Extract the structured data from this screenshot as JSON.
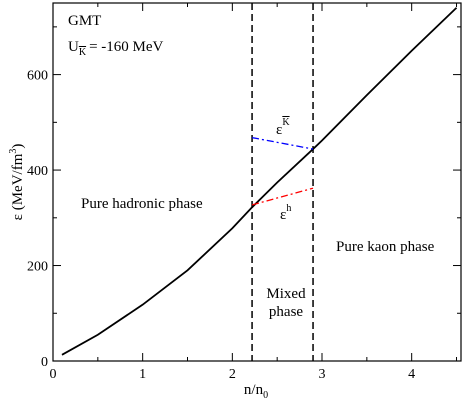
{
  "chart_data": {
    "type": "line",
    "title": "",
    "xlabel": "n/n",
    "xlabel_sub": "0",
    "ylabel": "ε (MeV/fm",
    "ylabel_sup": "3",
    "ylabel_close": ")",
    "xlim": [
      0,
      4.55
    ],
    "ylim": [
      0,
      750
    ],
    "x_ticks": [
      0,
      1,
      2,
      3,
      4
    ],
    "x_tick_labels": [
      "0",
      "1",
      "2",
      "3",
      "4"
    ],
    "y_ticks": [
      0,
      200,
      400,
      600
    ],
    "y_tick_labels": [
      "0",
      "200",
      "400",
      "600"
    ],
    "x_minor_step": 0.5,
    "y_minor_step": 100,
    "grid": false,
    "series": [
      {
        "color": "#000000",
        "style": "solid",
        "x": [
          0.1,
          0.5,
          1.0,
          1.5,
          2.0,
          2.22,
          2.5,
          2.9,
          3.0,
          3.5,
          4.0,
          4.5
        ],
        "y": [
          13,
          55,
          118,
          190,
          278,
          322,
          374,
          444,
          462,
          557,
          650,
          740
        ]
      },
      {
        "color": "#0000ff",
        "style": "dash-dot",
        "x": [
          2.22,
          2.9
        ],
        "y": [
          468,
          444
        ]
      },
      {
        "color": "#ff0000",
        "style": "dash-dot",
        "x": [
          2.22,
          2.9
        ],
        "y": [
          327,
          362
        ]
      }
    ],
    "vlines": [
      {
        "x": 2.22,
        "style": "dashed",
        "color": "#000000"
      },
      {
        "x": 2.9,
        "style": "dashed",
        "color": "#000000"
      }
    ],
    "annotations": {
      "gmt": "GMT",
      "u_main": "U",
      "u_sub": "K",
      "u_value": "= -160 MeV",
      "eps_k": "ε",
      "eps_k_sup": "K",
      "eps_h": "ε",
      "eps_h_sup": "h",
      "pure_hadronic": "Pure hadronic phase",
      "pure_kaon": "Pure kaon phase",
      "mixed_line1": "Mixed",
      "mixed_line2": "phase"
    }
  }
}
